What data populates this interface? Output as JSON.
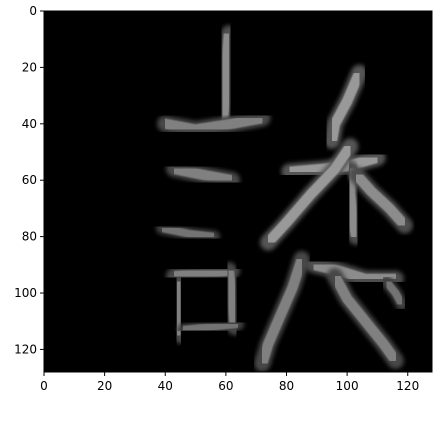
{
  "chart_data": {
    "type": "heatmap",
    "title": "",
    "xlabel": "",
    "ylabel": "",
    "colormap": "gray",
    "background": "#000000",
    "image_size": [
      128,
      128
    ],
    "xlim": [
      0,
      128
    ],
    "ylim": [
      128,
      0
    ],
    "x_ticks": [
      0,
      20,
      40,
      60,
      80,
      100,
      120
    ],
    "y_ticks": [
      0,
      20,
      40,
      60,
      80,
      100,
      120
    ],
    "description_strokes": [
      {
        "name": "stroke-top-vertical",
        "points": [
          [
            61,
            8
          ],
          [
            60,
            20
          ],
          [
            60,
            30
          ],
          [
            59,
            38
          ]
        ],
        "width": 4,
        "level": 0.55
      },
      {
        "name": "stroke-top-horizontal",
        "points": [
          [
            40,
            40
          ],
          [
            50,
            42
          ],
          [
            62,
            40
          ],
          [
            72,
            38
          ]
        ],
        "width": 4,
        "level": 0.5
      },
      {
        "name": "stroke-middle-horizontal",
        "points": [
          [
            43,
            56
          ],
          [
            52,
            58
          ],
          [
            62,
            60
          ]
        ],
        "width": 4,
        "level": 0.5
      },
      {
        "name": "stroke-lower-horizontal",
        "points": [
          [
            39,
            77
          ],
          [
            48,
            79
          ],
          [
            56,
            80
          ]
        ],
        "width": 3,
        "level": 0.45
      },
      {
        "name": "stroke-box-left",
        "points": [
          [
            45,
            96
          ],
          [
            44,
            106
          ],
          [
            45,
            115
          ]
        ],
        "width": 4,
        "level": 0.5
      },
      {
        "name": "stroke-box-top",
        "points": [
          [
            43,
            94
          ],
          [
            52,
            93
          ],
          [
            62,
            92
          ]
        ],
        "width": 4,
        "level": 0.5
      },
      {
        "name": "stroke-box-right",
        "points": [
          [
            61,
            92
          ],
          [
            62,
            102
          ],
          [
            63,
            112
          ]
        ],
        "width": 4,
        "level": 0.5
      },
      {
        "name": "stroke-box-bottom",
        "points": [
          [
            46,
            113
          ],
          [
            55,
            112
          ],
          [
            64,
            111
          ]
        ],
        "width": 3,
        "level": 0.45
      },
      {
        "name": "stroke-right-top-slope",
        "points": [
          [
            104,
            22
          ],
          [
            100,
            32
          ],
          [
            96,
            40
          ],
          [
            95,
            46
          ]
        ],
        "width": 4,
        "level": 0.6
      },
      {
        "name": "stroke-right-horizontal",
        "points": [
          [
            81,
            57
          ],
          [
            92,
            56
          ],
          [
            100,
            55
          ],
          [
            110,
            52
          ]
        ],
        "width": 4,
        "level": 0.6
      },
      {
        "name": "stroke-right-left-diag",
        "points": [
          [
            101,
            48
          ],
          [
            96,
            56
          ],
          [
            88,
            65
          ],
          [
            80,
            75
          ],
          [
            74,
            82
          ]
        ],
        "width": 4,
        "level": 0.6
      },
      {
        "name": "stroke-right-center-vertical",
        "points": [
          [
            101,
            56
          ],
          [
            101,
            65
          ],
          [
            102,
            75
          ],
          [
            103,
            80
          ]
        ],
        "width": 4,
        "level": 0.55
      },
      {
        "name": "stroke-right-right-diag",
        "points": [
          [
            103,
            58
          ],
          [
            108,
            64
          ],
          [
            114,
            70
          ],
          [
            119,
            76
          ]
        ],
        "width": 4,
        "level": 0.55
      },
      {
        "name": "stroke-bottom-left-diag",
        "points": [
          [
            85,
            88
          ],
          [
            82,
            98
          ],
          [
            78,
            108
          ],
          [
            74,
            118
          ],
          [
            72,
            125
          ]
        ],
        "width": 4,
        "level": 0.5
      },
      {
        "name": "stroke-bottom-horizontal",
        "points": [
          [
            89,
            90
          ],
          [
            97,
            92
          ],
          [
            106,
            95
          ],
          [
            116,
            95
          ]
        ],
        "width": 4,
        "level": 0.55
      },
      {
        "name": "stroke-bottom-right-diag",
        "points": [
          [
            96,
            94
          ],
          [
            100,
            102
          ],
          [
            106,
            110
          ],
          [
            112,
            118
          ],
          [
            116,
            124
          ]
        ],
        "width": 4,
        "level": 0.5
      },
      {
        "name": "stroke-bottom-small",
        "points": [
          [
            113,
            96
          ],
          [
            116,
            100
          ],
          [
            118,
            104
          ]
        ],
        "width": 3,
        "level": 0.45
      }
    ]
  },
  "x_tick_labels": [
    "0",
    "20",
    "40",
    "60",
    "80",
    "100",
    "120"
  ],
  "y_tick_labels": [
    "0",
    "20",
    "40",
    "60",
    "80",
    "100",
    "120"
  ]
}
